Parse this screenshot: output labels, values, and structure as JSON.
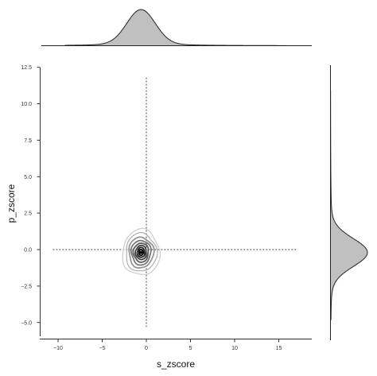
{
  "chart_data": {
    "type": "contour",
    "xlabel": "s_zscore",
    "ylabel": "p_zscore",
    "xlim": [
      -12,
      18.5
    ],
    "ylim": [
      -6.2,
      12.6
    ],
    "x_ticks": [
      -10,
      -5,
      0,
      5,
      10,
      15
    ],
    "x_tick_labels": [
      "−10",
      "−5",
      "0",
      "5",
      "10",
      "15"
    ],
    "y_ticks": [
      -5.0,
      -2.5,
      0.0,
      2.5,
      5.0,
      7.5,
      10.0,
      12.5
    ],
    "y_tick_labels": [
      "−5.0",
      "−2.5",
      "0.0",
      "2.5",
      "5.0",
      "7.5",
      "10.0",
      "12.5"
    ],
    "center": [
      -0.6,
      -0.2
    ],
    "reference_lines": {
      "vertical_x": 0,
      "vertical_y_range": [
        -5.3,
        11.8
      ],
      "horizontal_y": 0,
      "horizontal_x_range": [
        -10.6,
        17.1
      ]
    },
    "contours": [
      {
        "rx": 2.1,
        "ry": 1.5,
        "color": "#cfcfcf"
      },
      {
        "rx": 1.75,
        "ry": 1.25,
        "color": "#b3b3b3"
      },
      {
        "rx": 1.4,
        "ry": 1.0,
        "color": "#969696"
      },
      {
        "rx": 1.1,
        "ry": 0.8,
        "color": "#787878"
      },
      {
        "rx": 0.85,
        "ry": 0.62,
        "color": "#5a5a5a"
      },
      {
        "rx": 0.62,
        "ry": 0.46,
        "color": "#3c3c3c"
      },
      {
        "rx": 0.42,
        "ry": 0.32,
        "color": "#1e1e1e"
      },
      {
        "rx": 0.24,
        "ry": 0.19,
        "color": "#000000"
      }
    ],
    "marginal_x": {
      "mean": -0.6,
      "sd": 1.6,
      "tail_scale": 3.5,
      "range": [
        -9.2,
        15.8
      ],
      "fill": "#c0c0c0"
    },
    "marginal_y": {
      "mean": -0.2,
      "sd": 0.95,
      "tail_scale": 2.0,
      "range": [
        -4.8,
        10.9
      ],
      "fill": "#c0c0c0"
    }
  }
}
